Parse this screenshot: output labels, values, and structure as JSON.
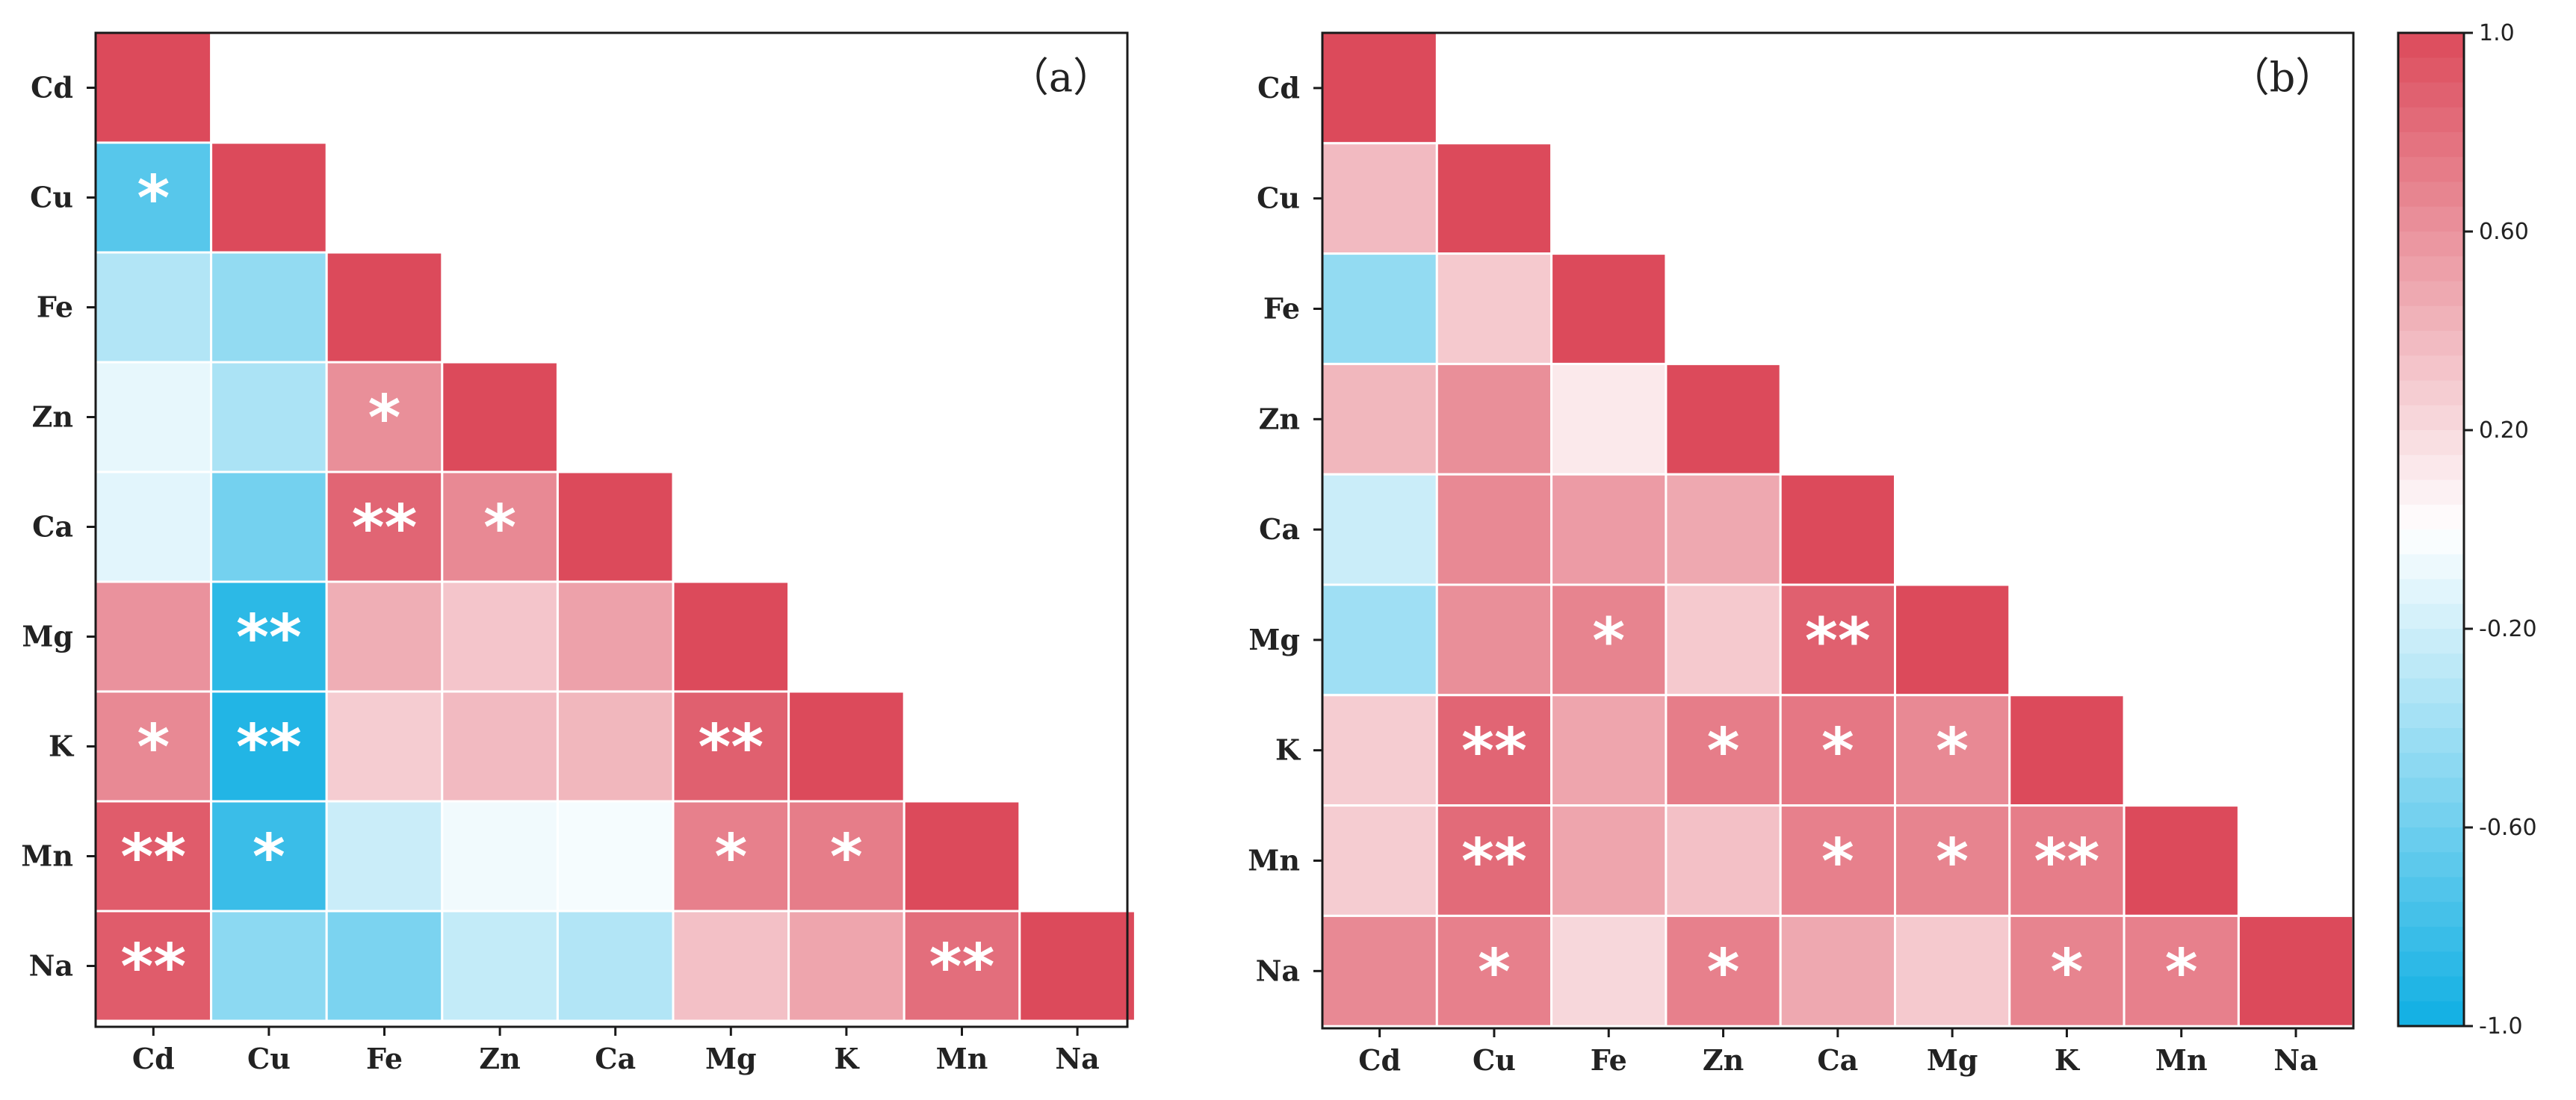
{
  "chart_data": [
    {
      "type": "heatmap",
      "panel_label": "（a）",
      "variables": [
        "Cd",
        "Cu",
        "Fe",
        "Zn",
        "Ca",
        "Mg",
        "K",
        "Mn",
        "Na"
      ],
      "matrix": [
        [
          1.0
        ],
        [
          -0.7,
          1.0
        ],
        [
          -0.32,
          -0.45,
          1.0
        ],
        [
          -0.1,
          -0.35,
          0.62,
          1.0
        ],
        [
          -0.12,
          -0.58,
          0.85,
          0.65,
          1.0
        ],
        [
          0.6,
          -0.88,
          0.45,
          0.32,
          0.52,
          1.0
        ],
        [
          0.65,
          -0.92,
          0.28,
          0.38,
          0.4,
          0.88,
          1.0
        ],
        [
          0.9,
          -0.82,
          -0.22,
          -0.06,
          -0.04,
          0.7,
          0.72,
          1.0
        ],
        [
          0.9,
          -0.48,
          -0.55,
          -0.25,
          -0.32,
          0.35,
          0.5,
          0.8,
          1.0
        ]
      ],
      "significance": [
        [
          ""
        ],
        [
          "*",
          ""
        ],
        [
          "",
          "",
          ""
        ],
        [
          "",
          "",
          "*",
          ""
        ],
        [
          "",
          "",
          "**",
          "*",
          ""
        ],
        [
          "",
          "**",
          "",
          "",
          "",
          ""
        ],
        [
          "*",
          "**",
          "",
          "",
          "",
          "**",
          ""
        ],
        [
          "**",
          "*",
          "",
          "",
          "",
          "*",
          "*",
          ""
        ],
        [
          "**",
          "",
          "",
          "",
          "",
          "",
          "",
          "**",
          ""
        ]
      ]
    },
    {
      "type": "heatmap",
      "panel_label": "（b）",
      "variables": [
        "Cd",
        "Cu",
        "Fe",
        "Zn",
        "Ca",
        "Mg",
        "K",
        "Mn",
        "Na"
      ],
      "matrix": [
        [
          1.0
        ],
        [
          0.38,
          1.0
        ],
        [
          -0.45,
          0.3,
          1.0
        ],
        [
          0.4,
          0.62,
          0.12,
          1.0
        ],
        [
          -0.22,
          0.65,
          0.55,
          0.48,
          1.0
        ],
        [
          -0.4,
          0.62,
          0.68,
          0.3,
          0.88,
          1.0
        ],
        [
          0.28,
          0.85,
          0.5,
          0.72,
          0.75,
          0.65,
          1.0
        ],
        [
          0.28,
          0.82,
          0.5,
          0.35,
          0.7,
          0.68,
          0.72,
          1.0
        ],
        [
          0.65,
          0.7,
          0.22,
          0.7,
          0.48,
          0.3,
          0.68,
          0.7,
          1.0
        ]
      ],
      "significance": [
        [
          ""
        ],
        [
          "",
          ""
        ],
        [
          "",
          "",
          ""
        ],
        [
          "",
          "",
          "",
          ""
        ],
        [
          "",
          "",
          "",
          "",
          ""
        ],
        [
          "",
          "",
          "*",
          "",
          "**",
          ""
        ],
        [
          "",
          "**",
          "",
          "*",
          "*",
          "*",
          ""
        ],
        [
          "",
          "**",
          "",
          "",
          "*",
          "*",
          "**",
          ""
        ],
        [
          "",
          "*",
          "",
          "*",
          "",
          "",
          "*",
          "*",
          ""
        ]
      ]
    }
  ],
  "colorbar": {
    "range": [
      -1.0,
      1.0
    ],
    "tick_values": [
      1.0,
      0.6,
      0.2,
      -0.2,
      -0.6,
      -1.0
    ],
    "tick_labels": [
      "1.0",
      "0.60",
      "0.20",
      "-0.20",
      "-0.60",
      "-1.0"
    ],
    "color_negative": "#0fafe3",
    "color_zero": "#ffffff",
    "color_positive": "#dc4a5b"
  }
}
